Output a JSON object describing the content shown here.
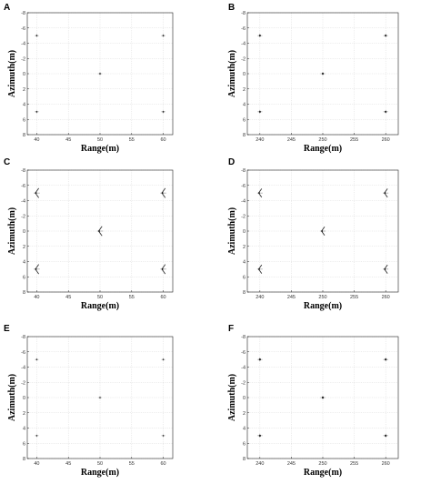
{
  "chart_data": [
    {
      "panel": "A",
      "type": "scatter",
      "xlabel": "Range(m)",
      "ylabel": "Azimuth(m)",
      "xlim": [
        38.5,
        61.5
      ],
      "ylim": [
        -8,
        8
      ],
      "y_reversed": true,
      "xticks": [
        40,
        45,
        50,
        55,
        60
      ],
      "yticks": [
        -8,
        -6,
        -4,
        -2,
        0,
        2,
        4,
        6,
        8
      ],
      "xtick_labels": [
        "40",
        "45",
        "50",
        "55",
        "60"
      ],
      "ytick_labels": [
        "-8",
        "-6",
        "-4",
        "-2",
        "0",
        "2",
        "4",
        "6",
        "8"
      ],
      "marker": "dot",
      "marker_size": 1.0,
      "grid": true,
      "points": [
        {
          "x": 40,
          "y": -5
        },
        {
          "x": 60,
          "y": -5
        },
        {
          "x": 50,
          "y": 0
        },
        {
          "x": 40,
          "y": 5
        },
        {
          "x": 60,
          "y": 5
        }
      ]
    },
    {
      "panel": "B",
      "type": "scatter",
      "xlabel": "Range(m)",
      "ylabel": "Azimuth(m)",
      "xlim": [
        238,
        262
      ],
      "ylim": [
        -8,
        8
      ],
      "y_reversed": true,
      "xticks": [
        240,
        245,
        250,
        255,
        260
      ],
      "yticks": [
        -8,
        -6,
        -4,
        -2,
        0,
        2,
        4,
        6,
        8
      ],
      "xtick_labels": [
        "240",
        "245",
        "250",
        "255",
        "260"
      ],
      "ytick_labels": [
        "-8",
        "-6",
        "-4",
        "-2",
        "0",
        "2",
        "4",
        "6",
        "8"
      ],
      "marker": "dot",
      "marker_size": 1.2,
      "grid": true,
      "points": [
        {
          "x": 240,
          "y": -5
        },
        {
          "x": 260,
          "y": -5
        },
        {
          "x": 250,
          "y": 0
        },
        {
          "x": 240,
          "y": 5
        },
        {
          "x": 260,
          "y": 5
        }
      ]
    },
    {
      "panel": "C",
      "type": "scatter",
      "xlabel": "Range(m)",
      "ylabel": "Azimuth(m)",
      "xlim": [
        38.5,
        61.5
      ],
      "ylim": [
        -8,
        8
      ],
      "y_reversed": true,
      "xticks": [
        40,
        45,
        50,
        55,
        60
      ],
      "yticks": [
        -8,
        -6,
        -4,
        -2,
        0,
        2,
        4,
        6,
        8
      ],
      "xtick_labels": [
        "40",
        "45",
        "50",
        "55",
        "60"
      ],
      "ytick_labels": [
        "-8",
        "-6",
        "-4",
        "-2",
        "0",
        "2",
        "4",
        "6",
        "8"
      ],
      "marker": "wedge",
      "marker_size": 2.2,
      "grid": true,
      "points": [
        {
          "x": 40,
          "y": -5
        },
        {
          "x": 60,
          "y": -5
        },
        {
          "x": 50,
          "y": 0
        },
        {
          "x": 40,
          "y": 5
        },
        {
          "x": 60,
          "y": 5
        }
      ]
    },
    {
      "panel": "D",
      "type": "scatter",
      "xlabel": "Range(m)",
      "ylabel": "Azimuth(m)",
      "xlim": [
        238,
        262
      ],
      "ylim": [
        -8,
        8
      ],
      "y_reversed": true,
      "xticks": [
        240,
        245,
        250,
        255,
        260
      ],
      "yticks": [
        -8,
        -6,
        -4,
        -2,
        0,
        2,
        4,
        6,
        8
      ],
      "xtick_labels": [
        "240",
        "245",
        "250",
        "255",
        "260"
      ],
      "ytick_labels": [
        "-8",
        "-6",
        "-4",
        "-2",
        "0",
        "2",
        "4",
        "6",
        "8"
      ],
      "marker": "wedge",
      "marker_size": 2.0,
      "grid": true,
      "points": [
        {
          "x": 240,
          "y": -5
        },
        {
          "x": 260,
          "y": -5
        },
        {
          "x": 250,
          "y": 0
        },
        {
          "x": 240,
          "y": 5
        },
        {
          "x": 260,
          "y": 5
        }
      ]
    },
    {
      "panel": "E",
      "type": "scatter",
      "xlabel": "Range(m)",
      "ylabel": "Azimuth(m)",
      "xlim": [
        38.5,
        61.5
      ],
      "ylim": [
        -8,
        8
      ],
      "y_reversed": true,
      "xticks": [
        40,
        45,
        50,
        55,
        60
      ],
      "yticks": [
        -8,
        -6,
        -4,
        -2,
        0,
        2,
        4,
        6,
        8
      ],
      "xtick_labels": [
        "40",
        "45",
        "50",
        "55",
        "60"
      ],
      "ytick_labels": [
        "-8",
        "-6",
        "-4",
        "-2",
        "0",
        "2",
        "4",
        "6",
        "8"
      ],
      "marker": "dot",
      "marker_size": 0.9,
      "grid": true,
      "points": [
        {
          "x": 40,
          "y": -5
        },
        {
          "x": 60,
          "y": -5
        },
        {
          "x": 50,
          "y": 0
        },
        {
          "x": 40,
          "y": 5
        },
        {
          "x": 60,
          "y": 5
        }
      ]
    },
    {
      "panel": "F",
      "type": "scatter",
      "xlabel": "Range(m)",
      "ylabel": "Azimuth(m)",
      "xlim": [
        238,
        262
      ],
      "ylim": [
        -8,
        8
      ],
      "y_reversed": true,
      "xticks": [
        240,
        245,
        250,
        255,
        260
      ],
      "yticks": [
        -8,
        -6,
        -4,
        -2,
        0,
        2,
        4,
        6,
        8
      ],
      "xtick_labels": [
        "240",
        "245",
        "250",
        "255",
        "260"
      ],
      "ytick_labels": [
        "-8",
        "-6",
        "-4",
        "-2",
        "0",
        "2",
        "4",
        "6",
        "8"
      ],
      "marker": "dot",
      "marker_size": 1.3,
      "grid": true,
      "points": [
        {
          "x": 240,
          "y": -5
        },
        {
          "x": 260,
          "y": -5
        },
        {
          "x": 250,
          "y": 0
        },
        {
          "x": 240,
          "y": 5
        },
        {
          "x": 260,
          "y": 5
        }
      ]
    }
  ]
}
